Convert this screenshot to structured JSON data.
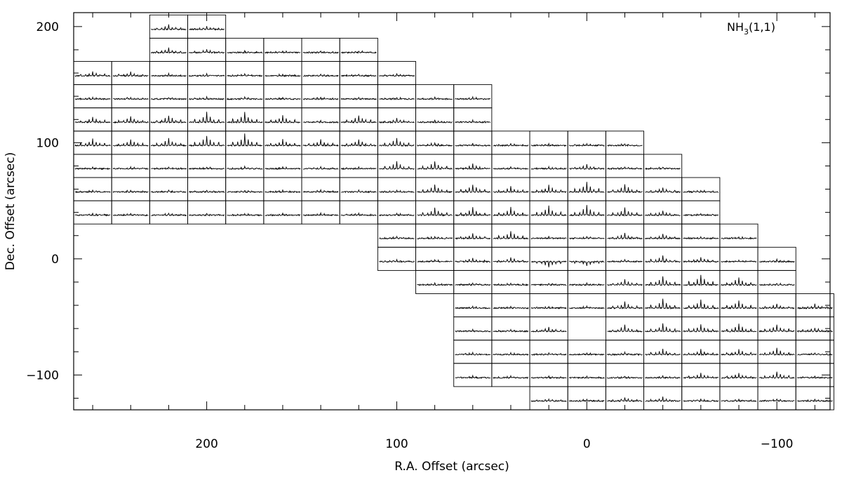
{
  "chart_data": {
    "type": "spectral-map",
    "annotation": "NH",
    "annotation_sub": "3",
    "annotation_tail": "(1,1)",
    "xlabel": "R.A. Offset (arcsec)",
    "ylabel": "Dec. Offset (arcsec)",
    "xlim": [
      270,
      -128
    ],
    "ylim": [
      -130,
      212
    ],
    "x_ticks": [
      200,
      100,
      0,
      -100
    ],
    "x_tick_labels": [
      "200",
      "100",
      "0",
      "−100"
    ],
    "y_ticks": [
      200,
      100,
      0,
      -100
    ],
    "y_tick_labels": [
      "200",
      "100",
      "0",
      "−100"
    ],
    "grid_spacing": 20,
    "rows": [
      {
        "dec": 200,
        "ra": [
          220,
          200
        ]
      },
      {
        "dec": 180,
        "ra": [
          220,
          200,
          180,
          160,
          140,
          120
        ]
      },
      {
        "dec": 160,
        "ra": [
          260,
          240,
          220,
          200,
          180,
          160,
          140,
          120,
          100
        ]
      },
      {
        "dec": 140,
        "ra": [
          260,
          240,
          220,
          200,
          180,
          160,
          140,
          120,
          100,
          80,
          60
        ]
      },
      {
        "dec": 120,
        "ra": [
          260,
          240,
          220,
          200,
          180,
          160,
          140,
          120,
          100,
          80,
          60
        ]
      },
      {
        "dec": 100,
        "ra": [
          260,
          240,
          220,
          200,
          180,
          160,
          140,
          120,
          100,
          80,
          60,
          40,
          20,
          0,
          -20
        ]
      },
      {
        "dec": 80,
        "ra": [
          260,
          240,
          220,
          200,
          180,
          160,
          140,
          120,
          100,
          80,
          60,
          40,
          20,
          0,
          -20,
          -40
        ]
      },
      {
        "dec": 60,
        "ra": [
          260,
          240,
          220,
          200,
          180,
          160,
          140,
          120,
          100,
          80,
          60,
          40,
          20,
          0,
          -20,
          -40,
          -60
        ]
      },
      {
        "dec": 40,
        "ra": [
          260,
          240,
          220,
          200,
          180,
          160,
          140,
          120,
          100,
          80,
          60,
          40,
          20,
          0,
          -20,
          -40,
          -60
        ]
      },
      {
        "dec": 20,
        "ra": [
          100,
          80,
          60,
          40,
          20,
          0,
          -20,
          -40,
          -60,
          -80
        ]
      },
      {
        "dec": 0,
        "ra": [
          100,
          80,
          60,
          40,
          20,
          0,
          -20,
          -40,
          -60,
          -80,
          -100
        ]
      },
      {
        "dec": -20,
        "ra": [
          80,
          60,
          40,
          20,
          0,
          -20,
          -40,
          -60,
          -80,
          -100
        ]
      },
      {
        "dec": -40,
        "ra": [
          60,
          40,
          20,
          0,
          -20,
          -40,
          -60,
          -80,
          -100,
          -120
        ]
      },
      {
        "dec": -60,
        "ra": [
          60,
          40,
          20,
          -20,
          -40,
          -60,
          -80,
          -100,
          -120
        ]
      },
      {
        "dec": -80,
        "ra": [
          60,
          40,
          20,
          0,
          -20,
          -40,
          -60,
          -80,
          -100,
          -120
        ]
      },
      {
        "dec": -100,
        "ra": [
          60,
          40,
          20,
          0,
          -20,
          -40,
          -60,
          -80,
          -100,
          -120
        ]
      },
      {
        "dec": -120,
        "ra": [
          20,
          0,
          -20,
          -40,
          -60,
          -80,
          -100,
          -120
        ]
      }
    ],
    "peak_strength": [
      {
        "ra": 220,
        "dec": 200,
        "s": 0.6
      },
      {
        "ra": 200,
        "dec": 200,
        "s": 0.4
      },
      {
        "ra": 220,
        "dec": 180,
        "s": 0.6
      },
      {
        "ra": 200,
        "dec": 180,
        "s": 0.4
      },
      {
        "ra": 260,
        "dec": 160,
        "s": 0.6
      },
      {
        "ra": 240,
        "dec": 160,
        "s": 0.6
      },
      {
        "ra": 260,
        "dec": 120,
        "s": 0.7
      },
      {
        "ra": 240,
        "dec": 120,
        "s": 0.8
      },
      {
        "ra": 220,
        "dec": 120,
        "s": 0.9
      },
      {
        "ra": 200,
        "dec": 120,
        "s": 1.3
      },
      {
        "ra": 180,
        "dec": 120,
        "s": 1.3
      },
      {
        "ra": 160,
        "dec": 120,
        "s": 0.9
      },
      {
        "ra": 120,
        "dec": 120,
        "s": 0.9
      },
      {
        "ra": 100,
        "dec": 120,
        "s": 0.6
      },
      {
        "ra": 260,
        "dec": 100,
        "s": 0.9
      },
      {
        "ra": 240,
        "dec": 100,
        "s": 0.8
      },
      {
        "ra": 220,
        "dec": 100,
        "s": 1.0
      },
      {
        "ra": 200,
        "dec": 100,
        "s": 1.3
      },
      {
        "ra": 180,
        "dec": 100,
        "s": 1.5
      },
      {
        "ra": 160,
        "dec": 100,
        "s": 0.8
      },
      {
        "ra": 140,
        "dec": 100,
        "s": 0.8
      },
      {
        "ra": 120,
        "dec": 100,
        "s": 0.8
      },
      {
        "ra": 100,
        "dec": 100,
        "s": 1.0
      },
      {
        "ra": 80,
        "dec": 100,
        "s": 0.4
      },
      {
        "ra": 100,
        "dec": 80,
        "s": 1.0
      },
      {
        "ra": 80,
        "dec": 80,
        "s": 1.0
      },
      {
        "ra": 60,
        "dec": 80,
        "s": 0.6
      },
      {
        "ra": 0,
        "dec": 80,
        "s": 0.6
      },
      {
        "ra": 80,
        "dec": 60,
        "s": 1.0
      },
      {
        "ra": 60,
        "dec": 60,
        "s": 1.0
      },
      {
        "ra": 40,
        "dec": 60,
        "s": 0.7
      },
      {
        "ra": 20,
        "dec": 60,
        "s": 0.9
      },
      {
        "ra": 0,
        "dec": 60,
        "s": 1.3
      },
      {
        "ra": -20,
        "dec": 60,
        "s": 1.0
      },
      {
        "ra": -40,
        "dec": 60,
        "s": 0.6
      },
      {
        "ra": 80,
        "dec": 40,
        "s": 1.0
      },
      {
        "ra": 60,
        "dec": 40,
        "s": 1.1
      },
      {
        "ra": 40,
        "dec": 40,
        "s": 1.0
      },
      {
        "ra": 20,
        "dec": 40,
        "s": 1.2
      },
      {
        "ra": 0,
        "dec": 40,
        "s": 1.3
      },
      {
        "ra": -20,
        "dec": 40,
        "s": 1.0
      },
      {
        "ra": -40,
        "dec": 40,
        "s": 0.6
      },
      {
        "ra": 60,
        "dec": 20,
        "s": 0.7
      },
      {
        "ra": 40,
        "dec": 20,
        "s": 1.0
      },
      {
        "ra": -20,
        "dec": 20,
        "s": 0.7
      },
      {
        "ra": -40,
        "dec": 20,
        "s": 0.6
      },
      {
        "ra": 60,
        "dec": 0,
        "s": 0.5
      },
      {
        "ra": 40,
        "dec": 0,
        "s": 0.6
      },
      {
        "ra": 20,
        "dec": 0,
        "s": -0.8
      },
      {
        "ra": 0,
        "dec": 0,
        "s": -0.6
      },
      {
        "ra": -40,
        "dec": 0,
        "s": 0.8
      },
      {
        "ra": -60,
        "dec": 0,
        "s": 0.6
      },
      {
        "ra": -20,
        "dec": -20,
        "s": 0.7
      },
      {
        "ra": -40,
        "dec": -20,
        "s": 1.1
      },
      {
        "ra": -60,
        "dec": -20,
        "s": 1.3
      },
      {
        "ra": -80,
        "dec": -20,
        "s": 1.0
      },
      {
        "ra": -20,
        "dec": -40,
        "s": 0.8
      },
      {
        "ra": -40,
        "dec": -40,
        "s": 1.2
      },
      {
        "ra": -60,
        "dec": -40,
        "s": 1.1
      },
      {
        "ra": -80,
        "dec": -40,
        "s": 1.0
      },
      {
        "ra": -100,
        "dec": -40,
        "s": 0.6
      },
      {
        "ra": -120,
        "dec": -40,
        "s": 0.5
      },
      {
        "ra": 20,
        "dec": -60,
        "s": 0.6
      },
      {
        "ra": -20,
        "dec": -60,
        "s": 0.8
      },
      {
        "ra": -40,
        "dec": -60,
        "s": 1.0
      },
      {
        "ra": -60,
        "dec": -60,
        "s": 0.9
      },
      {
        "ra": -80,
        "dec": -60,
        "s": 1.0
      },
      {
        "ra": -100,
        "dec": -60,
        "s": 0.9
      },
      {
        "ra": -120,
        "dec": -60,
        "s": 0.5
      },
      {
        "ra": -40,
        "dec": -80,
        "s": 0.7
      },
      {
        "ra": -60,
        "dec": -80,
        "s": 0.7
      },
      {
        "ra": -80,
        "dec": -80,
        "s": 0.7
      },
      {
        "ra": -100,
        "dec": -80,
        "s": 0.9
      },
      {
        "ra": -60,
        "dec": -100,
        "s": 0.6
      },
      {
        "ra": -80,
        "dec": -100,
        "s": 0.6
      },
      {
        "ra": -100,
        "dec": -100,
        "s": 0.8
      },
      {
        "ra": -20,
        "dec": -120,
        "s": 0.5
      },
      {
        "ra": -40,
        "dec": -120,
        "s": 0.5
      }
    ],
    "grid": false,
    "legend": "none"
  }
}
